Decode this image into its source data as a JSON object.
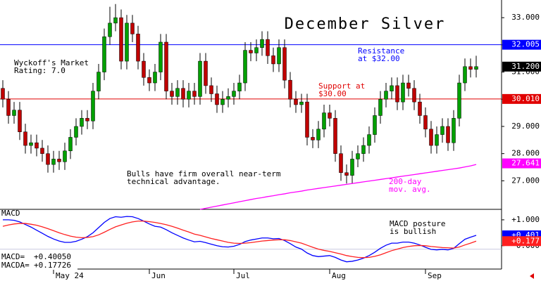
{
  "chart_data": [
    {
      "type": "candlestick",
      "title": "December Silver",
      "categories": [
        null,
        null,
        null,
        null,
        null,
        null,
        null,
        null,
        null,
        "May 24",
        null,
        null,
        null,
        null,
        null,
        null,
        null,
        null,
        null,
        null,
        null,
        null,
        null,
        null,
        null,
        null,
        "Jun",
        null,
        null,
        null,
        null,
        null,
        null,
        null,
        null,
        null,
        null,
        null,
        null,
        null,
        null,
        "Jul",
        null,
        null,
        null,
        null,
        null,
        null,
        null,
        null,
        null,
        null,
        null,
        null,
        null,
        null,
        null,
        null,
        "Aug",
        null,
        null,
        null,
        null,
        null,
        null,
        null,
        null,
        null,
        null,
        null,
        null,
        null,
        null,
        null,
        null,
        "Sep",
        null,
        null,
        null,
        null,
        null,
        null,
        null,
        null,
        null
      ],
      "open": [
        30.4,
        30.0,
        29.4,
        29.6,
        28.8,
        28.3,
        28.4,
        28.2,
        28.0,
        27.6,
        27.8,
        27.7,
        28.1,
        28.6,
        29.0,
        29.3,
        29.2,
        30.3,
        31.0,
        32.3,
        32.8,
        33.0,
        31.4,
        32.8,
        32.4,
        31.4,
        30.8,
        30.6,
        31.0,
        32.1,
        30.3,
        30.1,
        30.4,
        30.0,
        30.3,
        30.1,
        31.4,
        30.5,
        30.2,
        29.8,
        30.0,
        30.1,
        30.3,
        30.6,
        31.8,
        31.7,
        31.9,
        32.2,
        31.6,
        31.3,
        31.9,
        30.7,
        30.0,
        29.8,
        29.9,
        28.6,
        28.5,
        28.9,
        29.5,
        29.3,
        28.0,
        27.3,
        27.2,
        27.8,
        28.0,
        28.3,
        28.7,
        29.4,
        30.0,
        30.3,
        30.5,
        29.9,
        30.6,
        30.4,
        29.9,
        29.4,
        28.9,
        28.3,
        28.7,
        29.0,
        28.4,
        29.3,
        30.6,
        31.2,
        31.1
      ],
      "high": [
        30.7,
        30.3,
        29.9,
        29.9,
        29.1,
        28.7,
        28.7,
        28.5,
        28.3,
        28.1,
        28.1,
        28.4,
        28.9,
        29.3,
        29.6,
        29.6,
        30.6,
        31.3,
        32.6,
        33.4,
        33.5,
        33.3,
        33.1,
        33.1,
        32.7,
        31.7,
        31.1,
        31.3,
        32.4,
        32.4,
        30.6,
        30.7,
        30.7,
        30.6,
        30.6,
        31.7,
        31.7,
        30.8,
        30.5,
        30.3,
        30.4,
        30.6,
        30.9,
        32.1,
        32.1,
        32.2,
        32.5,
        32.5,
        31.9,
        32.2,
        32.2,
        31.0,
        30.3,
        30.2,
        30.2,
        28.9,
        29.2,
        29.8,
        29.8,
        29.6,
        28.3,
        27.6,
        28.1,
        28.3,
        28.6,
        29.0,
        29.7,
        30.3,
        30.6,
        30.8,
        30.8,
        30.9,
        30.9,
        30.7,
        30.2,
        29.7,
        29.2,
        29.0,
        29.3,
        29.3,
        29.6,
        30.9,
        31.5,
        31.5,
        31.6
      ],
      "low": [
        29.7,
        29.1,
        29.1,
        28.5,
        28.0,
        28.0,
        27.9,
        27.7,
        27.3,
        27.3,
        27.4,
        27.4,
        27.8,
        28.3,
        28.7,
        28.9,
        28.9,
        30.0,
        30.7,
        32.0,
        32.5,
        31.1,
        31.1,
        32.1,
        31.1,
        30.5,
        30.3,
        30.3,
        30.7,
        30.0,
        29.8,
        29.8,
        29.7,
        29.7,
        29.8,
        29.8,
        30.2,
        29.9,
        29.5,
        29.5,
        29.7,
        29.8,
        30.0,
        30.3,
        31.4,
        31.4,
        31.6,
        31.3,
        31.0,
        31.0,
        30.4,
        29.7,
        29.5,
        29.5,
        28.3,
        28.2,
        28.2,
        28.6,
        29.0,
        27.7,
        27.0,
        26.9,
        26.9,
        27.5,
        27.7,
        28.0,
        28.4,
        29.1,
        29.7,
        30.0,
        29.6,
        29.6,
        30.1,
        29.6,
        29.1,
        28.6,
        28.0,
        28.0,
        28.4,
        28.1,
        28.1,
        29.0,
        30.3,
        30.8,
        30.8
      ],
      "close": [
        30.0,
        29.4,
        29.6,
        28.8,
        28.3,
        28.4,
        28.2,
        28.0,
        27.6,
        27.8,
        27.7,
        28.1,
        28.6,
        29.0,
        29.3,
        29.2,
        30.3,
        31.0,
        32.3,
        32.8,
        33.0,
        31.4,
        32.8,
        32.4,
        31.4,
        30.8,
        30.6,
        31.0,
        32.1,
        30.3,
        30.1,
        30.4,
        30.0,
        30.3,
        30.1,
        31.4,
        30.5,
        30.2,
        29.8,
        30.0,
        30.1,
        30.3,
        30.6,
        31.8,
        31.7,
        31.9,
        32.2,
        31.6,
        31.3,
        31.9,
        30.7,
        30.0,
        29.8,
        29.9,
        28.6,
        28.5,
        28.9,
        29.5,
        29.3,
        28.0,
        27.3,
        27.2,
        27.8,
        28.0,
        28.3,
        28.7,
        29.4,
        30.0,
        30.3,
        30.5,
        29.9,
        30.6,
        30.4,
        29.9,
        29.4,
        28.9,
        28.3,
        28.7,
        29.0,
        28.4,
        29.3,
        30.6,
        31.2,
        31.1,
        31.2
      ],
      "up_color": "#00a000",
      "down_color": "#c00000",
      "series": [
        {
          "color": "#ff00ff",
          "values": [
            null,
            null,
            null,
            null,
            null,
            null,
            null,
            null,
            null,
            null,
            null,
            null,
            null,
            null,
            null,
            null,
            null,
            null,
            null,
            null,
            null,
            null,
            null,
            null,
            null,
            null,
            null,
            null,
            null,
            null,
            null,
            null,
            null,
            null,
            null,
            25.95,
            25.99,
            26.03,
            26.07,
            26.11,
            26.15,
            26.19,
            26.23,
            26.27,
            26.31,
            26.35,
            26.38,
            26.42,
            26.45,
            26.49,
            26.52,
            26.56,
            26.59,
            26.62,
            26.66,
            26.69,
            26.72,
            26.75,
            26.78,
            26.81,
            26.84,
            26.87,
            26.9,
            26.93,
            26.96,
            26.99,
            27.02,
            27.05,
            27.08,
            27.11,
            27.14,
            27.17,
            27.2,
            27.23,
            27.26,
            27.29,
            27.32,
            27.35,
            27.38,
            27.41,
            27.44,
            27.47,
            27.51,
            27.55,
            27.6
          ]
        }
      ],
      "ylim": [
        25.95,
        33.65
      ],
      "yticks": [
        {
          "value": 33,
          "label": "33.000"
        },
        {
          "value": 32,
          "label": "32.000"
        },
        {
          "value": 31,
          "label": "31.000"
        },
        {
          "value": 30,
          "label": "30.000"
        },
        {
          "value": 29,
          "label": "29.000"
        },
        {
          "value": 28,
          "label": "28.000"
        },
        {
          "value": 27,
          "label": "27.000"
        }
      ],
      "levels": [
        {
          "value": 32.005,
          "label": "32.005",
          "color": "#0000ff",
          "line": true
        },
        {
          "value": 31.2,
          "label": "31.200",
          "color": "#000000",
          "line": false
        },
        {
          "value": 30.01,
          "label": "30.010",
          "color": "#e00000",
          "line": true
        },
        {
          "value": 27.641,
          "label": "27.641",
          "color": "#ff00ff",
          "line": false
        }
      ],
      "annotations": [
        {
          "lines": [
            "Wyckoff's Market",
            "Rating: 7.0"
          ]
        },
        {
          "lines": [
            "Resistance",
            "at $32.00"
          ]
        },
        {
          "lines": [
            "Support at",
            "$30.00"
          ]
        },
        {
          "lines": [
            "Bulls have firm overall near-term",
            "technical advantage."
          ]
        },
        {
          "lines": [
            "200-day",
            "mov. avg."
          ]
        }
      ]
    },
    {
      "type": "line",
      "title": "MACD",
      "series": [
        {
          "name": "MACD=",
          "color": "#0000ff",
          "readout": "+0.40050",
          "badge": "+0.401",
          "values": [
            1.0,
            1.0,
            0.98,
            0.92,
            0.82,
            0.72,
            0.6,
            0.48,
            0.36,
            0.26,
            0.18,
            0.13,
            0.13,
            0.17,
            0.25,
            0.35,
            0.5,
            0.7,
            0.9,
            1.05,
            1.12,
            1.1,
            1.13,
            1.12,
            1.05,
            0.95,
            0.84,
            0.75,
            0.72,
            0.62,
            0.5,
            0.4,
            0.3,
            0.22,
            0.15,
            0.17,
            0.12,
            0.06,
            0.0,
            -0.04,
            -0.05,
            -0.02,
            0.05,
            0.16,
            0.22,
            0.26,
            0.3,
            0.3,
            0.27,
            0.28,
            0.2,
            0.08,
            -0.05,
            -0.13,
            -0.28,
            -0.38,
            -0.42,
            -0.4,
            -0.38,
            -0.45,
            -0.55,
            -0.62,
            -0.6,
            -0.55,
            -0.48,
            -0.38,
            -0.25,
            -0.1,
            0.02,
            0.1,
            0.1,
            0.14,
            0.14,
            0.1,
            0.03,
            -0.06,
            -0.14,
            -0.16,
            -0.14,
            -0.16,
            -0.1,
            0.08,
            0.25,
            0.33,
            0.4005
          ]
        },
        {
          "name": "MACDA=",
          "color": "#ff2020",
          "readout": "+0.17726",
          "badge": "+0.177",
          "values": [
            0.75,
            0.8,
            0.84,
            0.86,
            0.86,
            0.83,
            0.79,
            0.73,
            0.66,
            0.58,
            0.5,
            0.43,
            0.37,
            0.33,
            0.31,
            0.32,
            0.35,
            0.42,
            0.52,
            0.63,
            0.73,
            0.8,
            0.87,
            0.92,
            0.95,
            0.95,
            0.93,
            0.9,
            0.86,
            0.81,
            0.75,
            0.68,
            0.6,
            0.53,
            0.45,
            0.4,
            0.34,
            0.28,
            0.23,
            0.18,
            0.13,
            0.1,
            0.09,
            0.1,
            0.12,
            0.15,
            0.18,
            0.2,
            0.22,
            0.23,
            0.23,
            0.2,
            0.15,
            0.1,
            0.02,
            -0.06,
            -0.13,
            -0.18,
            -0.22,
            -0.27,
            -0.32,
            -0.38,
            -0.42,
            -0.45,
            -0.46,
            -0.45,
            -0.41,
            -0.35,
            -0.27,
            -0.19,
            -0.13,
            -0.07,
            -0.03,
            0.0,
            0.01,
            0.0,
            -0.03,
            -0.05,
            -0.07,
            -0.08,
            -0.09,
            -0.05,
            0.03,
            0.1,
            0.17726
          ]
        }
      ],
      "ylim": [
        -0.9,
        1.35
      ],
      "yticks": [
        {
          "value": 1,
          "label": "+1.000"
        },
        {
          "value": 0,
          "label": "0.000"
        }
      ],
      "annotations": [
        {
          "lines": [
            "MACD posture",
            "is bullish"
          ]
        }
      ]
    }
  ]
}
